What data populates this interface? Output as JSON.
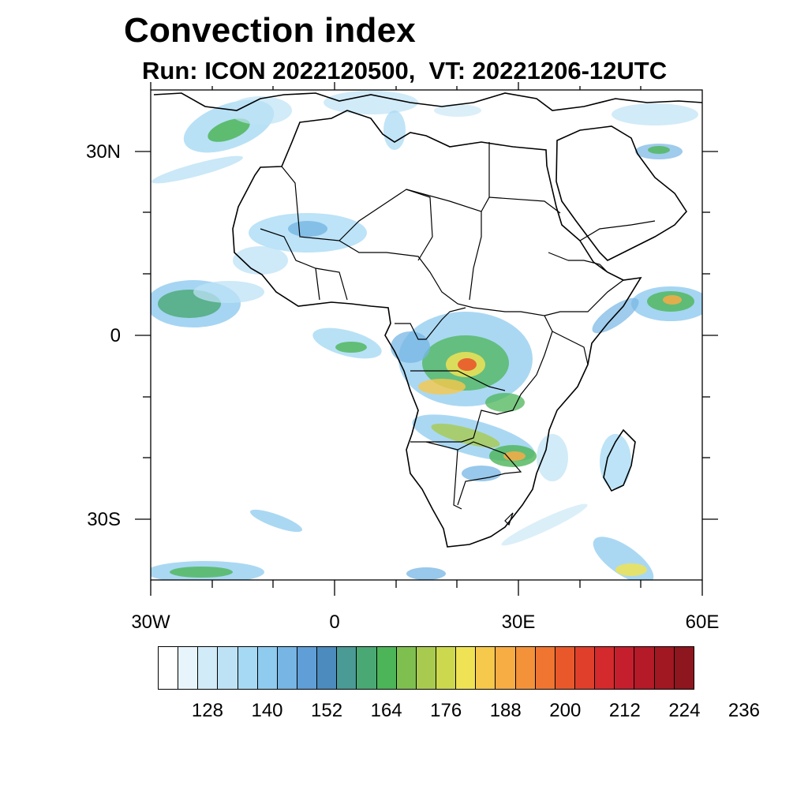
{
  "header": {
    "title": "Convection index",
    "subtitle": "Run: ICON 2022120500,  VT: 20221206-12UTC"
  },
  "map": {
    "projection": "cylindrical equidistant",
    "lon_range": [
      -30,
      60
    ],
    "lat_range": [
      -40,
      40
    ],
    "lat_tick_labels": [
      "30N",
      "0",
      "30S"
    ],
    "lon_tick_labels": [
      "30W",
      "0",
      "30E",
      "60E"
    ],
    "coastline_color": "#000000"
  },
  "colorbar": {
    "colors": [
      "#ffffff",
      "#e8f4fc",
      "#d2ebf8",
      "#bde2f5",
      "#a6d9f4",
      "#8ecbef",
      "#76b5e4",
      "#5f9ed6",
      "#4b8bbd",
      "#4a9a95",
      "#4aa874",
      "#4cb558",
      "#7fbf4f",
      "#a8cb4f",
      "#ccd84e",
      "#efe355",
      "#f6c84b",
      "#f7ac44",
      "#f4923a",
      "#ef7531",
      "#e9582b",
      "#e03f2b",
      "#d42a2d",
      "#c51f2d",
      "#b41a27",
      "#a21822",
      "#8e161e"
    ],
    "tick_labels": [
      "128",
      "140",
      "152",
      "164",
      "176",
      "188",
      "200",
      "212",
      "224",
      "236"
    ]
  }
}
